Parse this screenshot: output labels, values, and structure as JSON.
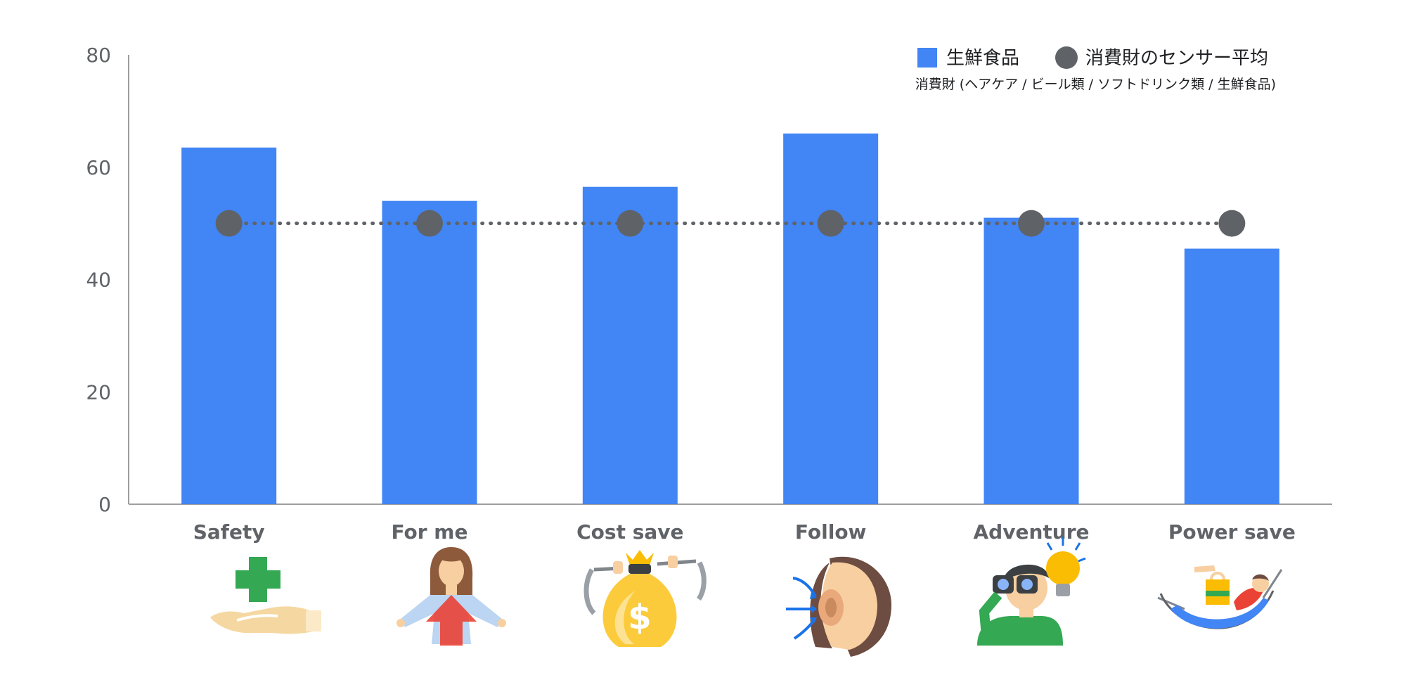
{
  "chart_data": {
    "type": "bar",
    "title": "",
    "xlabel": "",
    "ylabel": "",
    "ylim": [
      0,
      80
    ],
    "yticks": [
      0,
      20,
      40,
      60,
      80
    ],
    "grid": false,
    "legend_position": "top-right",
    "categories": [
      "Safety",
      "For me",
      "Cost save",
      "Follow",
      "Adventure",
      "Power save"
    ],
    "series": [
      {
        "name": "生鮮食品",
        "kind": "bar",
        "color": "#4285F4",
        "values": [
          63.5,
          54,
          56.5,
          66,
          51,
          45.5
        ]
      },
      {
        "name": "消費財のセンサー平均",
        "kind": "line-dots",
        "color": "#5F6368",
        "values": [
          50,
          50,
          50,
          50,
          50,
          50
        ]
      }
    ],
    "note": "消費財 (ヘアケア / ビール類 / ソフトドリンク類  / 生鮮食品)",
    "category_icons": [
      "hand-with-medical-cross-icon",
      "woman-with-arrow-icon",
      "money-bag-icon",
      "ear-listening-icon",
      "binoculars-lightbulb-icon",
      "hammock-shopping-icon"
    ]
  },
  "colors": {
    "axis": "#9E9E9E",
    "tick_text": "#5F6368",
    "category_text": "#5F6368",
    "note_text": "#202124"
  }
}
